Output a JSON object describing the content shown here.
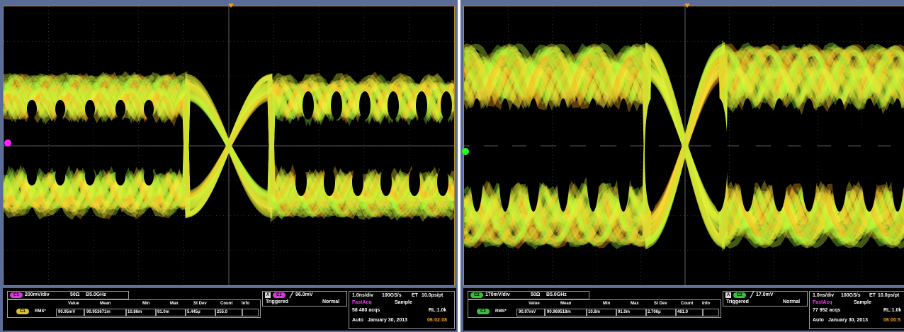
{
  "left": {
    "channel_scale": "200mV/div",
    "impedance": "50Ω",
    "bandwidth": "5.0GHz",
    "trigger_level": "96.0mV",
    "trigger_state": "Triggered",
    "trigger_mode": "Normal",
    "meas_headers": [
      "Value",
      "Mean",
      "Min",
      "Max",
      "St Dev",
      "Count",
      "Info"
    ],
    "meas_name": "RMS*",
    "meas_values": [
      "90.95mV",
      "90.953671m",
      "10.86m",
      "91.0m",
      "5.445μ",
      "255.0",
      ""
    ],
    "horiz_scale": "1.0ns/div",
    "sample_rate": "100GS/s",
    "et": "ET",
    "pt_rate": "10.0ps/pt",
    "acq_mode": "FastAcq",
    "acq_sample": "Sample",
    "acqs": "58 480 acqs",
    "rl": "RL:1.0k",
    "run_mode": "Auto",
    "date": "January 30, 2013",
    "time": "06:02:08",
    "ch_color": "#d63bd6",
    "ch_marker_color": "#ff22ff"
  },
  "right": {
    "channel_scale": "170mV/div",
    "impedance": "50Ω",
    "bandwidth": "5.0GHz",
    "trigger_level": "17.0mV",
    "trigger_state": "Triggered",
    "trigger_mode": "Normal",
    "meas_headers": [
      "Value",
      "Mean",
      "Min",
      "Max",
      "St Dev",
      "Count",
      "Info"
    ],
    "meas_name": "RMS*",
    "meas_values": [
      "90.97mV",
      "90.969518m",
      "10.8m",
      "91.0m",
      "2.706μ",
      "461.0",
      ""
    ],
    "horiz_scale": "1.0ns/div",
    "sample_rate": "100GS/s",
    "et": "ET",
    "pt_rate": "10.0ps/pt",
    "acq_mode": "FastAcq",
    "acq_sample": "Sample",
    "acqs": "77 952 acqs",
    "rl": "RL:1.0k",
    "run_mode": "Auto",
    "date": "January 30, 2013",
    "time": "06:00:5",
    "ch_color": "#3bbf3b",
    "ch_marker_color": "#22ff22"
  }
}
